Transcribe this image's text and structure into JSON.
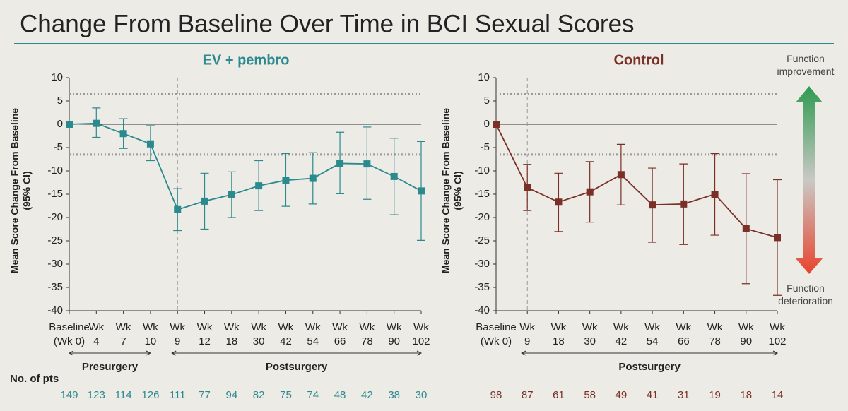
{
  "title": "Change From Baseline Over Time in BCI Sexual Scores",
  "patients_label": "No. of pts",
  "arrow_labels": {
    "top": "Function improvement",
    "bottom": "Function deterioration"
  },
  "chart_data": [
    {
      "type": "line",
      "title": "EV + pembro",
      "color": "#2b8a8e",
      "y_label": "Mean Score Change From Baseline (95% CI)",
      "categories": [
        "Baseline (Wk 0)",
        "Wk 4",
        "Wk 7",
        "Wk 10",
        "Wk 9",
        "Wk 12",
        "Wk 18",
        "Wk 30",
        "Wk 42",
        "Wk 54",
        "Wk 66",
        "Wk 78",
        "Wk 90",
        "Wk 102"
      ],
      "values": [
        0,
        0.2,
        -2,
        -4.2,
        -18.3,
        -16.5,
        -15.1,
        -13.2,
        -12,
        -11.6,
        -8.4,
        -8.5,
        -11.2,
        -14.3
      ],
      "ci_lower": [
        null,
        -2.8,
        -5.2,
        -7.8,
        -22.8,
        -22.5,
        -20,
        -18.5,
        -17.6,
        -17.1,
        -14.9,
        -16.1,
        -19.4,
        -24.9
      ],
      "ci_upper": [
        null,
        3.5,
        1.2,
        -0.3,
        -13.8,
        -10.5,
        -10.2,
        -7.8,
        -6.3,
        -6.1,
        -1.7,
        -0.6,
        -3,
        -3.7
      ],
      "n_patients": [
        149,
        123,
        114,
        126,
        111,
        77,
        94,
        82,
        75,
        74,
        48,
        42,
        38,
        30
      ],
      "phases": [
        {
          "label": "Presurgery",
          "from": 0,
          "to": 3
        },
        {
          "label": "Postsurgery",
          "from": 4,
          "to": 13
        }
      ],
      "thresholds": [
        6.5,
        -6.5
      ],
      "ylim": [
        -40,
        10
      ],
      "yticks": [
        10,
        5,
        0,
        -5,
        -10,
        -15,
        -20,
        -25,
        -30,
        -35,
        -40
      ]
    },
    {
      "type": "line",
      "title": "Control",
      "color": "#7b3027",
      "y_label": "Mean Score Change From Baseline (95% CI)",
      "categories": [
        "Baseline (Wk 0)",
        "Wk 9",
        "Wk 18",
        "Wk 30",
        "Wk 42",
        "Wk 54",
        "Wk 66",
        "Wk 78",
        "Wk 90",
        "Wk 102"
      ],
      "values": [
        0,
        -13.6,
        -16.7,
        -14.5,
        -10.8,
        -17.3,
        -17.1,
        -15,
        -22.4,
        -24.3
      ],
      "ci_lower": [
        null,
        -18.5,
        -23,
        -21,
        -17.3,
        -25.3,
        -25.8,
        -23.8,
        -34.2,
        -36.7
      ],
      "ci_upper": [
        null,
        -8.6,
        -10.5,
        -8,
        -4.3,
        -9.4,
        -8.5,
        -6.3,
        -10.6,
        -11.9
      ],
      "n_patients": [
        98,
        87,
        61,
        58,
        49,
        41,
        31,
        19,
        18,
        14
      ],
      "phases": [
        {
          "label": "Postsurgery",
          "from": 1,
          "to": 9
        }
      ],
      "thresholds": [
        6.5,
        -6.5
      ],
      "ylim": [
        -40,
        10
      ],
      "yticks": [
        10,
        5,
        0,
        -5,
        -10,
        -15,
        -20,
        -25,
        -30,
        -35,
        -40
      ]
    }
  ]
}
